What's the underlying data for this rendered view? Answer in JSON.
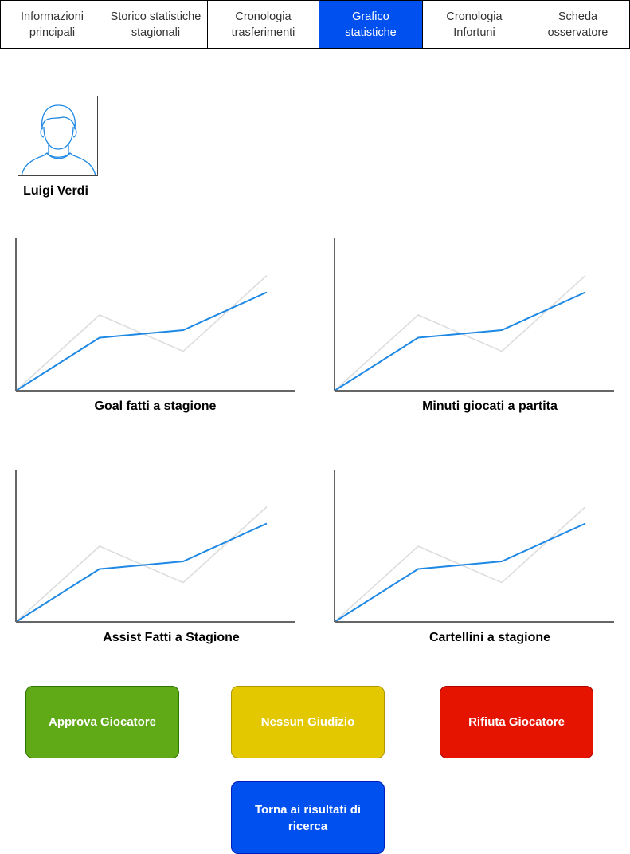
{
  "tabs": [
    {
      "label": "Informazioni\nprincipali",
      "active": false
    },
    {
      "label": "Storico statistiche\nstagionali",
      "active": false
    },
    {
      "label": "Cronologia\ntrasferimenti",
      "active": false
    },
    {
      "label": "Grafico\nstatistiche",
      "active": true
    },
    {
      "label": "Cronologia\nInfortuni",
      "active": false
    },
    {
      "label": "Scheda\nosservatore",
      "active": false
    }
  ],
  "player": {
    "name": "Luigi Verdi",
    "avatar_icon": "user-avatar-icon"
  },
  "colors": {
    "accent": "#0050ef",
    "series_primary": "#1e88e5",
    "series_secondary": "#dddddd",
    "axis": "#666666",
    "approve": "#60a917",
    "neutral": "#e3c800",
    "reject": "#e51400"
  },
  "chart_data": [
    {
      "type": "line",
      "title": "Goal fatti a stagione",
      "grid": false,
      "x": [
        0,
        1,
        2,
        3
      ],
      "ylim": [
        0,
        100
      ],
      "series": [
        {
          "values": [
            0,
            35,
            40,
            65
          ]
        },
        {
          "values": [
            0,
            50,
            26,
            76
          ]
        }
      ]
    },
    {
      "type": "line",
      "title": "Minuti giocati a partita",
      "grid": false,
      "x": [
        0,
        1,
        2,
        3
      ],
      "ylim": [
        0,
        100
      ],
      "series": [
        {
          "values": [
            0,
            35,
            40,
            65
          ]
        },
        {
          "values": [
            0,
            50,
            26,
            76
          ]
        }
      ]
    },
    {
      "type": "line",
      "title": "Assist Fatti a Stagione",
      "grid": false,
      "x": [
        0,
        1,
        2,
        3
      ],
      "ylim": [
        0,
        100
      ],
      "series": [
        {
          "values": [
            0,
            35,
            40,
            65
          ]
        },
        {
          "values": [
            0,
            50,
            26,
            76
          ]
        }
      ]
    },
    {
      "type": "line",
      "title": "Cartellini a stagione",
      "grid": false,
      "x": [
        0,
        1,
        2,
        3
      ],
      "ylim": [
        0,
        100
      ],
      "series": [
        {
          "values": [
            0,
            35,
            40,
            65
          ]
        },
        {
          "values": [
            0,
            50,
            26,
            76
          ]
        }
      ]
    }
  ],
  "actions": {
    "approve": "Approva Giocatore",
    "neutral": "Nessun Giudizio",
    "reject": "Rifiuta Giocatore",
    "back": "Torna ai risultati di ricerca"
  }
}
